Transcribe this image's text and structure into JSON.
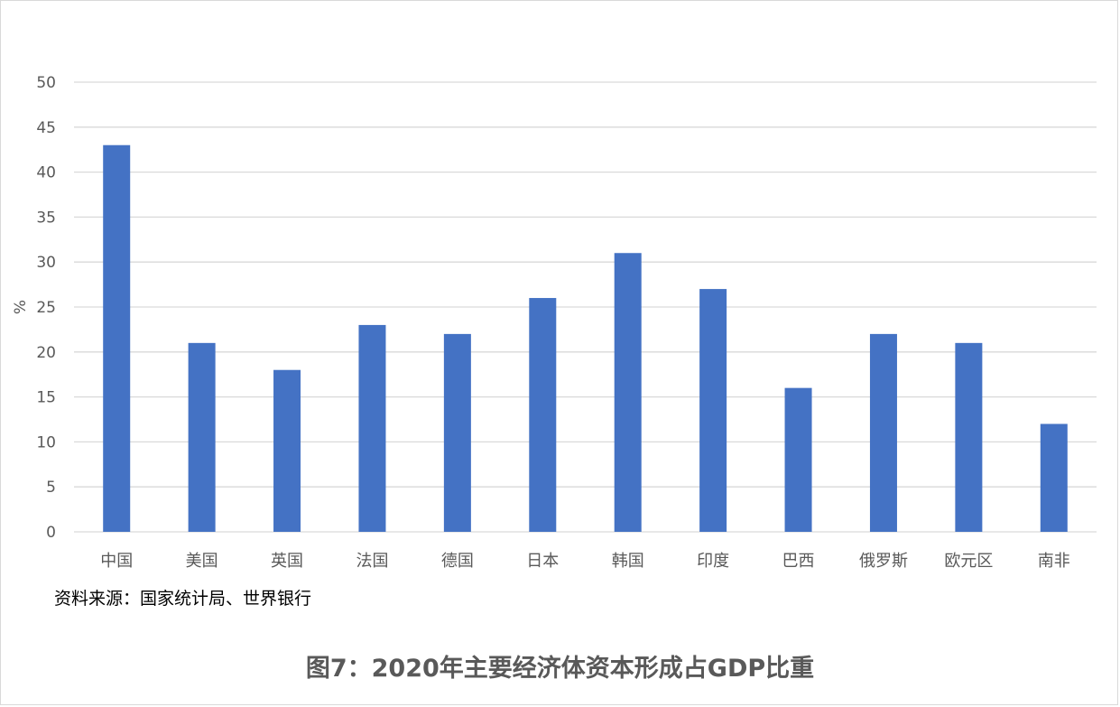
{
  "chart_data": {
    "type": "bar",
    "categories": [
      "中国",
      "美国",
      "英国",
      "法国",
      "德国",
      "日本",
      "韩国",
      "印度",
      "巴西",
      "俄罗斯",
      "欧元区",
      "南非"
    ],
    "values": [
      43,
      21,
      18,
      23,
      22,
      26,
      31,
      27,
      16,
      22,
      21,
      12
    ],
    "ylabel": "%",
    "ylim": [
      0,
      50
    ],
    "yticks": [
      0,
      5,
      10,
      15,
      20,
      25,
      30,
      35,
      40,
      45,
      50
    ],
    "grid": true,
    "bar_color": "#4472C4",
    "grid_color": "#d9d9d9"
  },
  "source_note": "资料来源：国家统计局、世界银行",
  "caption": "图7：2020年主要经济体资本形成占GDP比重"
}
